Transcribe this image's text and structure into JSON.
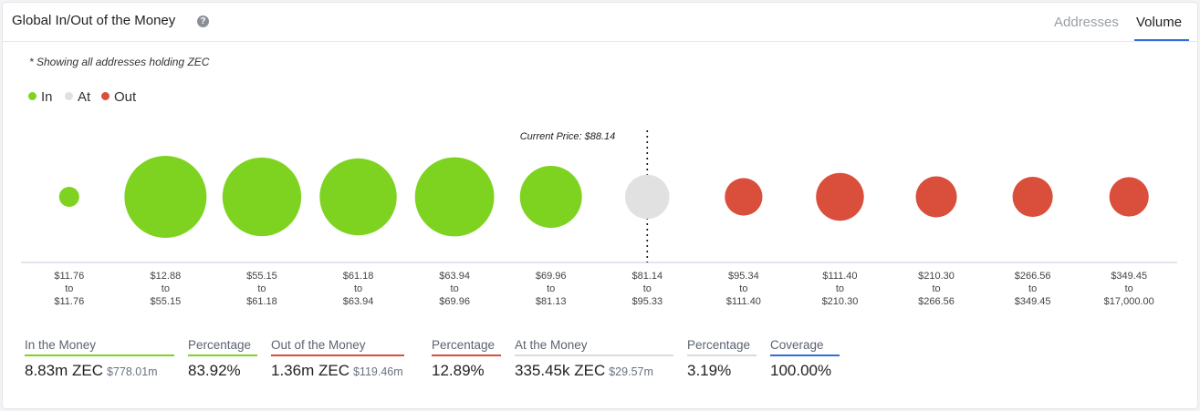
{
  "header": {
    "title": "Global In/Out of the Money",
    "tabs": [
      {
        "label": "Addresses",
        "active": false
      },
      {
        "label": "Volume",
        "active": true
      }
    ]
  },
  "note": "* Showing all addresses holding ZEC",
  "legend": [
    {
      "label": "In",
      "color": "#7ed321"
    },
    {
      "label": "At",
      "color": "#e1e1e1"
    },
    {
      "label": "Out",
      "color": "#d94f3b"
    }
  ],
  "chart_data": {
    "type": "bubble",
    "title": "Global In/Out of the Money",
    "current_price_label": "Current Price: $88.14",
    "current_price": 88.14,
    "categories": [
      {
        "from": "$11.76",
        "to": "$11.76",
        "status": "in",
        "relative_volume": 0.06
      },
      {
        "from": "$12.88",
        "to": "$55.15",
        "status": "in",
        "relative_volume": 1.0
      },
      {
        "from": "$55.15",
        "to": "$61.18",
        "status": "in",
        "relative_volume": 0.92
      },
      {
        "from": "$61.18",
        "to": "$63.94",
        "status": "in",
        "relative_volume": 0.88
      },
      {
        "from": "$63.94",
        "to": "$69.96",
        "status": "in",
        "relative_volume": 0.93
      },
      {
        "from": "$69.96",
        "to": "$81.13",
        "status": "in",
        "relative_volume": 0.57
      },
      {
        "from": "$81.14",
        "to": "$95.33",
        "status": "at",
        "relative_volume": 0.29
      },
      {
        "from": "$95.34",
        "to": "$111.40",
        "status": "out",
        "relative_volume": 0.21
      },
      {
        "from": "$111.40",
        "to": "$210.30",
        "status": "out",
        "relative_volume": 0.34
      },
      {
        "from": "$210.30",
        "to": "$266.56",
        "status": "out",
        "relative_volume": 0.25
      },
      {
        "from": "$266.56",
        "to": "$349.45",
        "status": "out",
        "relative_volume": 0.24
      },
      {
        "from": "$349.45",
        "to": "$17,000.00",
        "status": "out",
        "relative_volume": 0.23
      }
    ],
    "to_word": "to",
    "colors": {
      "in": "#7ed321",
      "at": "#e1e1e1",
      "out": "#d94f3b"
    }
  },
  "stats": [
    {
      "label": "In the Money",
      "value": "8.83m ZEC",
      "sub": "$778.01m",
      "bar_color": "#7ed321"
    },
    {
      "label": "Percentage",
      "value": "83.92%",
      "sub": "",
      "bar_color": "#7ed321"
    },
    {
      "label": "Out of the Money",
      "value": "1.36m ZEC",
      "sub": "$119.46m",
      "bar_color": "#d94f3b"
    },
    {
      "label": "Percentage",
      "value": "12.89%",
      "sub": "",
      "bar_color": "#d94f3b"
    },
    {
      "label": "At the Money",
      "value": "335.45k ZEC",
      "sub": "$29.57m",
      "bar_color": "#dcdcdc"
    },
    {
      "label": "Percentage",
      "value": "3.19%",
      "sub": "",
      "bar_color": "#dcdcdc"
    },
    {
      "label": "Coverage",
      "value": "100.00%",
      "sub": "",
      "bar_color": "#2f6fd8"
    }
  ]
}
